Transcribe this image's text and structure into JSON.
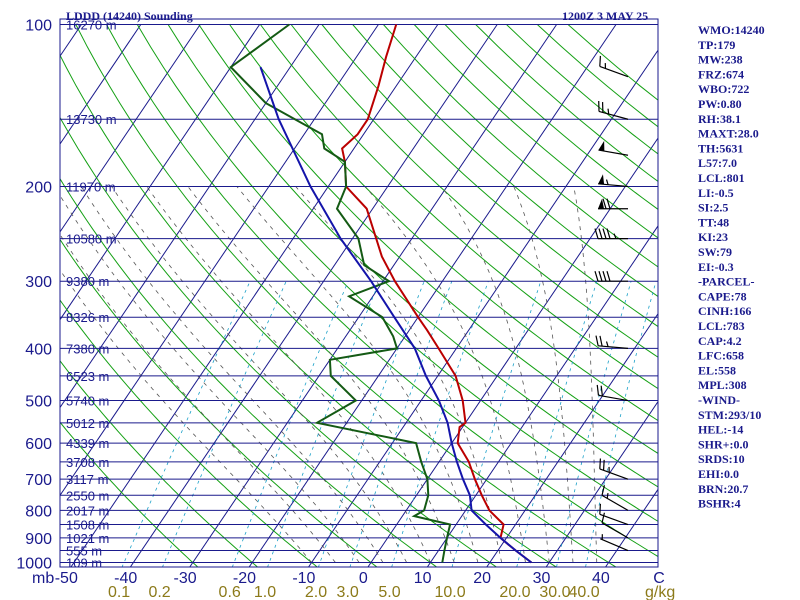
{
  "chart_data": {
    "type": "line",
    "title": "LDDD (14240) Sounding",
    "time_label": "1200Z  3 MAY 25",
    "x_unit_label": "C",
    "mixing_unit_label": "g/kg",
    "pressure_unit_label": "mb",
    "pressure_levels": [
      100,
      200,
      300,
      400,
      500,
      600,
      700,
      800,
      900,
      1000
    ],
    "temperature_ticks": [
      "-50",
      "-40",
      "-30",
      "-20",
      "-10",
      "0",
      "10",
      "20",
      "30",
      "40"
    ],
    "mixing_ratio_labels": [
      "0.1",
      "0.2",
      "0.6",
      "1.0",
      "2.0",
      "3.0",
      "5.0",
      "10.0",
      "20.0",
      "30.0",
      "40.0"
    ],
    "height_labels": [
      {
        "p": 100,
        "label": "16270 m"
      },
      {
        "p": 150,
        "label": "13730 m"
      },
      {
        "p": 200,
        "label": "11970 m"
      },
      {
        "p": 250,
        "label": "10580 m"
      },
      {
        "p": 300,
        "label": "9380 m"
      },
      {
        "p": 350,
        "label": "8326 m"
      },
      {
        "p": 400,
        "label": "7380 m"
      },
      {
        "p": 450,
        "label": "6523 m"
      },
      {
        "p": 500,
        "label": "5740 m"
      },
      {
        "p": 550,
        "label": "5012 m"
      },
      {
        "p": 600,
        "label": "4339 m"
      },
      {
        "p": 650,
        "label": "3708 m"
      },
      {
        "p": 700,
        "label": "3117 m"
      },
      {
        "p": 750,
        "label": "2550 m"
      },
      {
        "p": 800,
        "label": "2017 m"
      },
      {
        "p": 850,
        "label": "1508 m"
      },
      {
        "p": 900,
        "label": "1021 m"
      },
      {
        "p": 950,
        "label": "555 m"
      },
      {
        "p": 1000,
        "label": "109 m"
      }
    ],
    "series": [
      {
        "name": "",
        "color": "#bb0000",
        "points": [
          [
            1000,
            27
          ],
          [
            950,
            23
          ],
          [
            925,
            21
          ],
          [
            900,
            19
          ],
          [
            850,
            18
          ],
          [
            800,
            14
          ],
          [
            750,
            11
          ],
          [
            700,
            8
          ],
          [
            650,
            5
          ],
          [
            600,
            1
          ],
          [
            560,
            -0.5
          ],
          [
            550,
            0
          ],
          [
            500,
            -3
          ],
          [
            450,
            -7
          ],
          [
            400,
            -13
          ],
          [
            370,
            -17
          ],
          [
            350,
            -20
          ],
          [
            300,
            -28
          ],
          [
            270,
            -33
          ],
          [
            250,
            -36
          ],
          [
            220,
            -41
          ],
          [
            200,
            -47
          ],
          [
            180,
            -50
          ],
          [
            170,
            -52
          ],
          [
            160,
            -51
          ],
          [
            150,
            -51
          ],
          [
            130,
            -53
          ],
          [
            115,
            -55
          ],
          [
            100,
            -57
          ]
        ]
      },
      {
        "name": "",
        "color": "#145a14",
        "points": [
          [
            1000,
            12
          ],
          [
            950,
            11
          ],
          [
            900,
            10
          ],
          [
            850,
            9
          ],
          [
            820,
            2
          ],
          [
            800,
            3
          ],
          [
            750,
            2
          ],
          [
            700,
            0
          ],
          [
            650,
            -3
          ],
          [
            600,
            -6
          ],
          [
            550,
            -25
          ],
          [
            500,
            -21
          ],
          [
            450,
            -28
          ],
          [
            420,
            -30
          ],
          [
            400,
            -20
          ],
          [
            380,
            -22
          ],
          [
            350,
            -26
          ],
          [
            320,
            -34
          ],
          [
            300,
            -29
          ],
          [
            280,
            -35
          ],
          [
            250,
            -39
          ],
          [
            220,
            -46
          ],
          [
            200,
            -47
          ],
          [
            180,
            -50
          ],
          [
            170,
            -55
          ],
          [
            160,
            -57
          ],
          [
            140,
            -70
          ],
          [
            120,
            -80
          ],
          [
            100,
            -75
          ]
        ]
      },
      {
        "name": "",
        "color": "#1414aa",
        "points": [
          [
            1000,
            27
          ],
          [
            950,
            23
          ],
          [
            900,
            19
          ],
          [
            850,
            15
          ],
          [
            800,
            11
          ],
          [
            750,
            9
          ],
          [
            700,
            6
          ],
          [
            650,
            3
          ],
          [
            600,
            0
          ],
          [
            550,
            -3
          ],
          [
            500,
            -7
          ],
          [
            450,
            -12
          ],
          [
            400,
            -17
          ],
          [
            350,
            -24
          ],
          [
            300,
            -32
          ],
          [
            250,
            -42
          ],
          [
            200,
            -53
          ],
          [
            150,
            -66
          ],
          [
            120,
            -75
          ]
        ]
      }
    ],
    "wind_barbs": [
      {
        "p": 950,
        "dir": 293,
        "spd": 5
      },
      {
        "p": 900,
        "dir": 300,
        "spd": 10
      },
      {
        "p": 850,
        "dir": 290,
        "spd": 10
      },
      {
        "p": 800,
        "dir": 300,
        "spd": 15
      },
      {
        "p": 700,
        "dir": 290,
        "spd": 25
      },
      {
        "p": 500,
        "dir": 280,
        "spd": 20
      },
      {
        "p": 400,
        "dir": 275,
        "spd": 25
      },
      {
        "p": 300,
        "dir": 270,
        "spd": 40
      },
      {
        "p": 250,
        "dir": 270,
        "spd": 45
      },
      {
        "p": 220,
        "dir": 270,
        "spd": 70
      },
      {
        "p": 200,
        "dir": 275,
        "spd": 55
      },
      {
        "p": 175,
        "dir": 280,
        "spd": 50
      },
      {
        "p": 150,
        "dir": 285,
        "spd": 25
      },
      {
        "p": 125,
        "dir": 290,
        "spd": 15
      }
    ],
    "x_range": [
      -50,
      45
    ],
    "y_range_mb": [
      100,
      1050
    ]
  },
  "indices": [
    "WMO:14240",
    "TP:179",
    "MW:238",
    "FRZ:674",
    "WBO:722",
    "PW:0.80",
    "RH:38.1",
    "MAXT:28.0",
    "TH:5631",
    "L57:7.0",
    "LCL:801",
    "LI:-0.5",
    "SI:2.5",
    "TT:48",
    "KI:23",
    "SW:79",
    "EI:-0.3",
    "-PARCEL-",
    "CAPE:78",
    "CINH:166",
    "LCL:783",
    "CAP:4.2",
    "LFC:658",
    "EL:558",
    "MPL:308",
    "-WIND-",
    "STM:293/10",
    "HEL:-14",
    "SHR+:0.0",
    "SRDS:10",
    "EHI:0.0",
    "BRN:20.7",
    "BSHR:4"
  ],
  "colors": {
    "frame": "#1a1a8c",
    "isobar": "#1a1a8c",
    "isotherm": "#1a1a8c",
    "dry_adiabat": "#14a014",
    "moist_adiabat": "#555555",
    "mixing_ratio": "#1aa0c8",
    "temperature": "#bb0000",
    "dewpoint": "#145a14",
    "parcel": "#1414aa",
    "wind_barb": "#000000"
  }
}
